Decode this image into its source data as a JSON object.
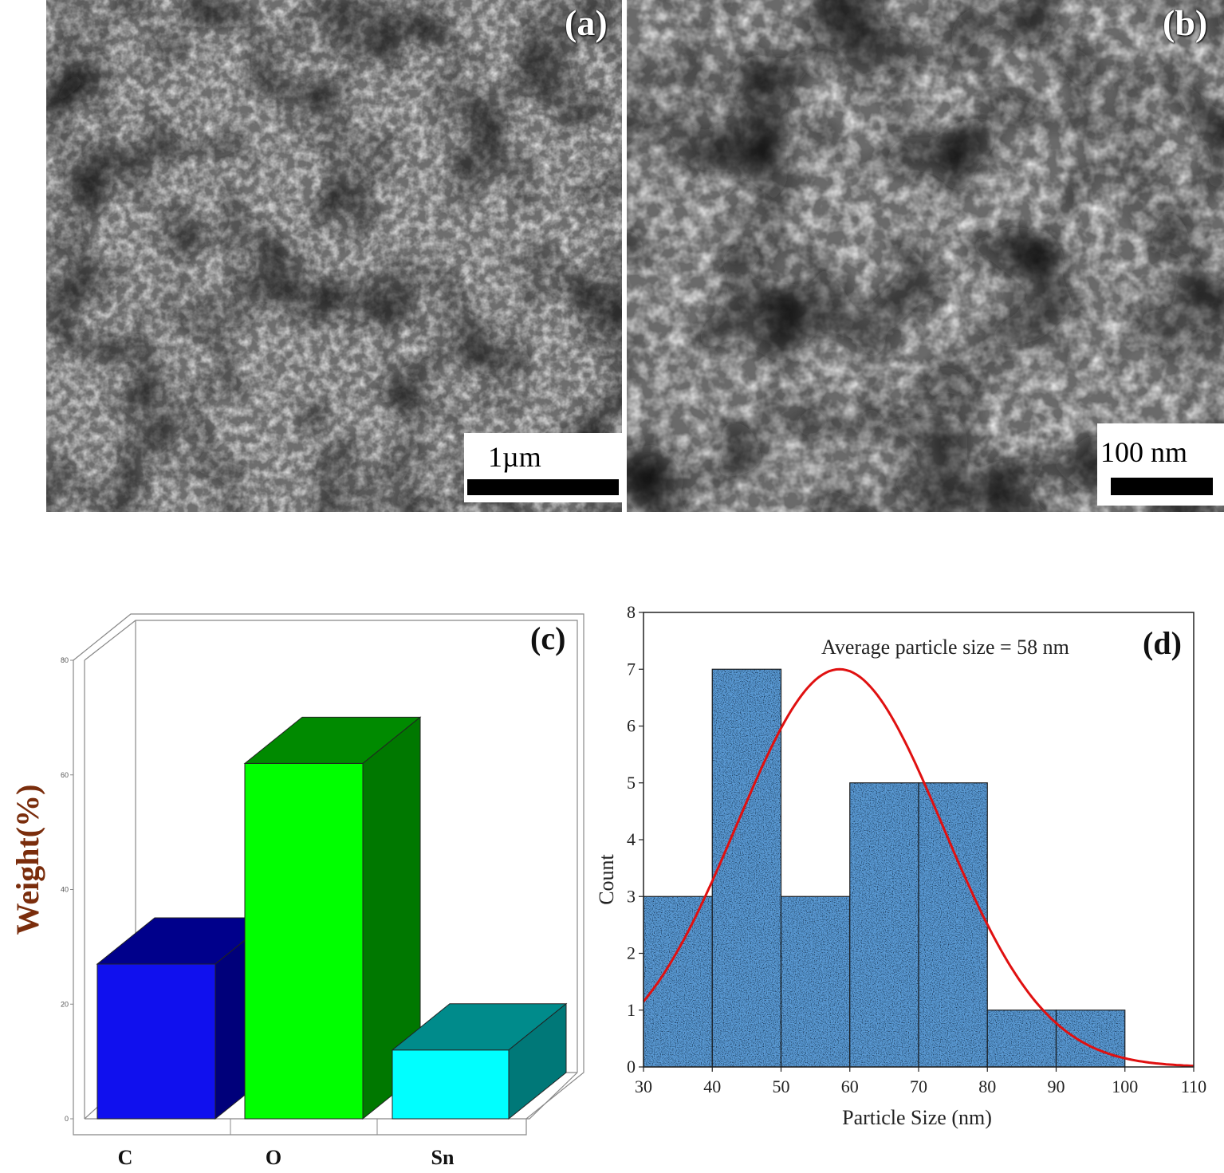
{
  "panels": {
    "a": {
      "label": "(a)",
      "scale_bar": "1µm"
    },
    "b": {
      "label": "(b)",
      "scale_bar": "100 nm"
    }
  },
  "chart_data": [
    {
      "panel": "c",
      "label": "(c)",
      "type": "bar",
      "style": "3d",
      "categories": [
        "C",
        "O",
        "Sn"
      ],
      "values": [
        27,
        62,
        12
      ],
      "colors": {
        "front": [
          "#1010ee",
          "#00ff00",
          "#00ffff"
        ],
        "top": [
          "#00008b",
          "#008a00",
          "#008b8b"
        ],
        "side": [
          "#00007a",
          "#007800",
          "#007878"
        ]
      },
      "ylabel": "Weight(%)",
      "ylim": [
        0,
        80
      ],
      "yticks": [
        0,
        20,
        40,
        60,
        80
      ],
      "ytick_labels": [
        "0",
        "20",
        "40",
        "60",
        "80"
      ],
      "grid": false
    },
    {
      "panel": "d",
      "label": "(d)",
      "type": "bar",
      "subtype": "histogram",
      "bins": [
        [
          30,
          40
        ],
        [
          40,
          50
        ],
        [
          50,
          60
        ],
        [
          60,
          70
        ],
        [
          70,
          80
        ],
        [
          80,
          90
        ],
        [
          90,
          100
        ]
      ],
      "counts": [
        3,
        7,
        3,
        5,
        5,
        1,
        1
      ],
      "bar_color": "#5b9bd5",
      "fit_curve": {
        "type": "gaussian",
        "mean": 58.5,
        "sd": 15,
        "peak": 7,
        "color": "#e01010"
      },
      "annotation": "Average particle size = 58 nm",
      "xlabel": "Particle Size (nm)",
      "ylabel": "Count",
      "xlim": [
        30,
        110
      ],
      "ylim": [
        0,
        8
      ],
      "xticks": [
        30,
        40,
        50,
        60,
        70,
        80,
        90,
        100,
        110
      ],
      "xtick_labels": [
        "30",
        "40",
        "50",
        "60",
        "70",
        "80",
        "90",
        "100",
        "110"
      ],
      "yticks": [
        0,
        1,
        2,
        3,
        4,
        5,
        6,
        7,
        8
      ],
      "ytick_labels": [
        "0",
        "1",
        "2",
        "3",
        "4",
        "5",
        "6",
        "7",
        "8"
      ],
      "grid": false
    }
  ]
}
